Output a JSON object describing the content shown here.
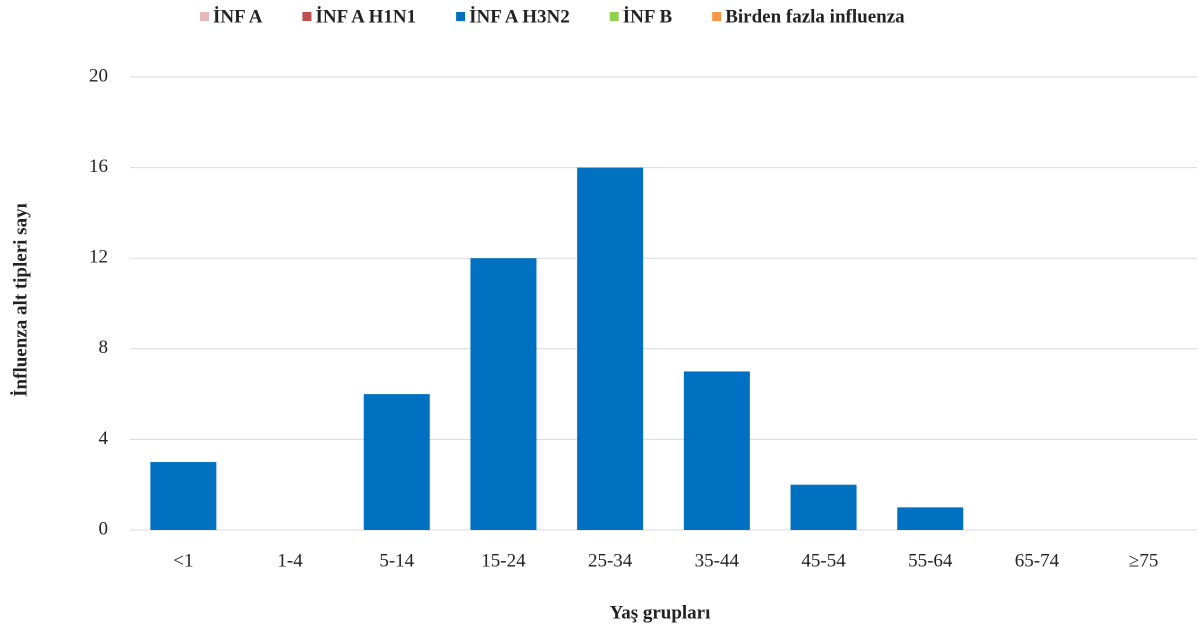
{
  "chart_data": {
    "type": "bar",
    "stacked": true,
    "x_label": "Yaş grupları",
    "y_label": "İnfluenza alt tipleri sayı",
    "categories": [
      "<1",
      "1-4",
      "5-14",
      "15-24",
      "25-34",
      "35-44",
      "45-54",
      "55-64",
      "65-74",
      "≥75"
    ],
    "series": [
      {
        "name": "İNF A",
        "color": "#e6b9b8",
        "values": [
          0,
          0,
          0,
          0,
          0,
          0,
          0,
          0,
          0,
          0
        ]
      },
      {
        "name": "İNF A H1N1",
        "color": "#c0504d",
        "values": [
          0,
          0,
          0,
          0,
          0,
          0,
          0,
          0,
          0,
          0
        ]
      },
      {
        "name": "İNF A H3N2",
        "color": "#0070c0",
        "values": [
          3,
          0,
          6,
          12,
          16,
          7,
          2,
          1,
          0,
          0
        ]
      },
      {
        "name": "İNF B",
        "color": "#92d050",
        "values": [
          0,
          0,
          0,
          0,
          0,
          0,
          0,
          0,
          0,
          0
        ]
      },
      {
        "name": "Birden fazla influenza",
        "color": "#f79646",
        "values": [
          0,
          0,
          0,
          0,
          0,
          0,
          0,
          0,
          0,
          0
        ]
      }
    ],
    "ylim": [
      0,
      20
    ],
    "yticks": [
      0,
      4,
      8,
      12,
      16,
      20
    ],
    "grid": true,
    "legend": "top"
  }
}
